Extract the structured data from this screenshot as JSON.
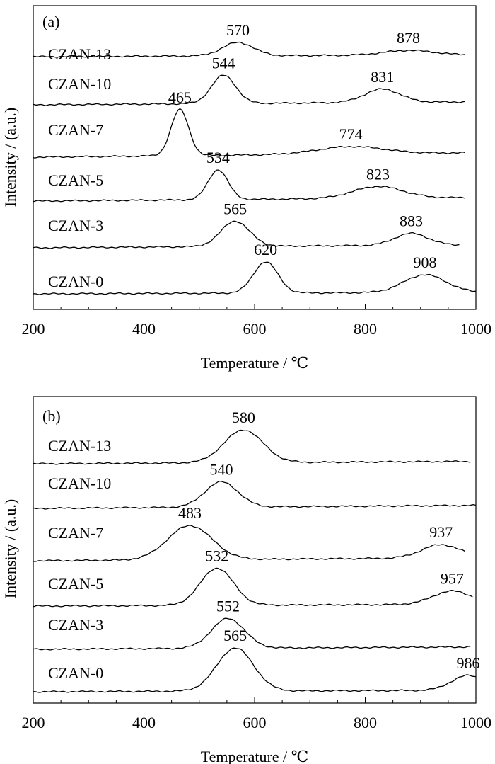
{
  "chart_data": [
    {
      "type": "line",
      "panel_label": "(a)",
      "xlabel": "Temperature / ℃",
      "ylabel": "Intensity / (a.u.)",
      "xlim": [
        200,
        1000
      ],
      "x_ticks": [
        "200",
        "400",
        "600",
        "800",
        "1000"
      ],
      "grid": false,
      "y_axis_scale": "arbitrary units, curves vertically offset",
      "series": [
        {
          "name": "CZAN-13",
          "x_range": [
            200,
            980
          ],
          "base": 0.06,
          "peaks": [
            {
              "center": 570,
              "label": "570",
              "height": 0.45,
              "width": 28
            },
            {
              "center": 878,
              "label": "878",
              "height": 0.16,
              "width": 45
            }
          ]
        },
        {
          "name": "CZAN-10",
          "x_range": [
            200,
            980
          ],
          "base": 0.1,
          "peaks": [
            {
              "center": 544,
              "label": "544",
              "height": 0.95,
              "width": 22
            },
            {
              "center": 831,
              "label": "831",
              "height": 0.45,
              "width": 32
            }
          ]
        },
        {
          "name": "CZAN-7",
          "x_range": [
            200,
            980
          ],
          "base": 0.15,
          "peaks": [
            {
              "center": 465,
              "label": "465",
              "height": 1.55,
              "width": 16
            },
            {
              "center": 774,
              "label": "774",
              "height": 0.25,
              "width": 60
            }
          ]
        },
        {
          "name": "CZAN-5",
          "x_range": [
            200,
            980
          ],
          "base": 0.12,
          "peaks": [
            {
              "center": 534,
              "label": "534",
              "height": 1.0,
              "width": 18
            },
            {
              "center": 823,
              "label": "823",
              "height": 0.4,
              "width": 45
            }
          ]
        },
        {
          "name": "CZAN-3",
          "x_range": [
            200,
            970
          ],
          "base": 0.1,
          "peaks": [
            {
              "center": 565,
              "label": "565",
              "height": 0.85,
              "width": 26
            },
            {
              "center": 883,
              "label": "883",
              "height": 0.4,
              "width": 30
            }
          ]
        },
        {
          "name": "CZAN-0",
          "x_range": [
            200,
            1000
          ],
          "base": 0.05,
          "peaks": [
            {
              "center": 620,
              "label": "620",
              "height": 1.05,
              "width": 22
            },
            {
              "center": 908,
              "label": "908",
              "height": 0.6,
              "width": 38
            }
          ]
        }
      ]
    },
    {
      "type": "line",
      "panel_label": "(b)",
      "xlabel": "Temperature / ℃",
      "ylabel": "Intensity / (a.u.)",
      "xlim": [
        200,
        1000
      ],
      "x_ticks": [
        "200",
        "400",
        "600",
        "800",
        "1000"
      ],
      "grid": false,
      "y_axis_scale": "arbitrary units, curves vertically offset",
      "series": [
        {
          "name": "CZAN-13",
          "x_range": [
            200,
            990
          ],
          "base": 0.08,
          "peaks": [
            {
              "center": 580,
              "label": "580",
              "height": 1.1,
              "width": 35
            }
          ]
        },
        {
          "name": "CZAN-10",
          "x_range": [
            200,
            1000
          ],
          "base": 0.1,
          "peaks": [
            {
              "center": 540,
              "label": "540",
              "height": 0.85,
              "width": 30
            }
          ]
        },
        {
          "name": "CZAN-7",
          "x_range": [
            200,
            980
          ],
          "base": 0.1,
          "peaks": [
            {
              "center": 483,
              "label": "483",
              "height": 1.15,
              "width": 40
            },
            {
              "center": 937,
              "label": "937",
              "height": 0.45,
              "width": 35
            }
          ]
        },
        {
          "name": "CZAN-5",
          "x_range": [
            200,
            995
          ],
          "base": 0.06,
          "peaks": [
            {
              "center": 532,
              "label": "532",
              "height": 1.25,
              "width": 30
            },
            {
              "center": 957,
              "label": "957",
              "height": 0.45,
              "width": 35
            }
          ]
        },
        {
          "name": "CZAN-3",
          "x_range": [
            200,
            990
          ],
          "base": 0.08,
          "peaks": [
            {
              "center": 552,
              "label": "552",
              "height": 1.0,
              "width": 30
            }
          ]
        },
        {
          "name": "CZAN-0",
          "x_range": [
            200,
            1000
          ],
          "base": 0.05,
          "peaks": [
            {
              "center": 565,
              "label": "565",
              "height": 1.45,
              "width": 33
            },
            {
              "center": 986,
              "label": "986",
              "height": 0.5,
              "width": 30
            }
          ]
        }
      ]
    }
  ]
}
